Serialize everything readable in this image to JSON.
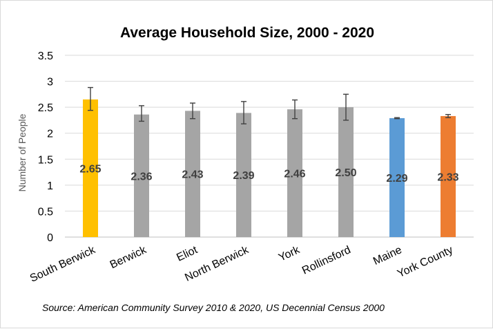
{
  "chart_data": {
    "type": "bar",
    "title": "Average Household Size, 2000 - 2020",
    "xlabel": "",
    "ylabel": "Number of People",
    "ylim": [
      0,
      3.5
    ],
    "yticks": [
      "0",
      "0.5",
      "1",
      "1.5",
      "2",
      "2.5",
      "3",
      "3.5"
    ],
    "grid": true,
    "categories": [
      "South Berwick",
      "Berwick",
      "Eliot",
      "North Berwick",
      "York",
      "Rollinsford",
      "Maine",
      "York County"
    ],
    "values": [
      2.65,
      2.36,
      2.43,
      2.39,
      2.46,
      2.5,
      2.29,
      2.33
    ],
    "data_labels": [
      "2.65",
      "2.36",
      "2.43",
      "2.39",
      "2.46",
      "2.50",
      "2.29",
      "2.33"
    ],
    "error_low": [
      2.44,
      2.23,
      2.28,
      2.18,
      2.28,
      2.25,
      2.28,
      2.3
    ],
    "error_high": [
      2.88,
      2.53,
      2.58,
      2.61,
      2.64,
      2.75,
      2.3,
      2.36
    ],
    "bar_colors": [
      "#ffc000",
      "#a5a5a5",
      "#a5a5a5",
      "#a5a5a5",
      "#a5a5a5",
      "#a5a5a5",
      "#5b9bd5",
      "#ed7d31"
    ],
    "source": "Source: American Community Survey 2010 & 2020, US Decennial Census 2000"
  }
}
